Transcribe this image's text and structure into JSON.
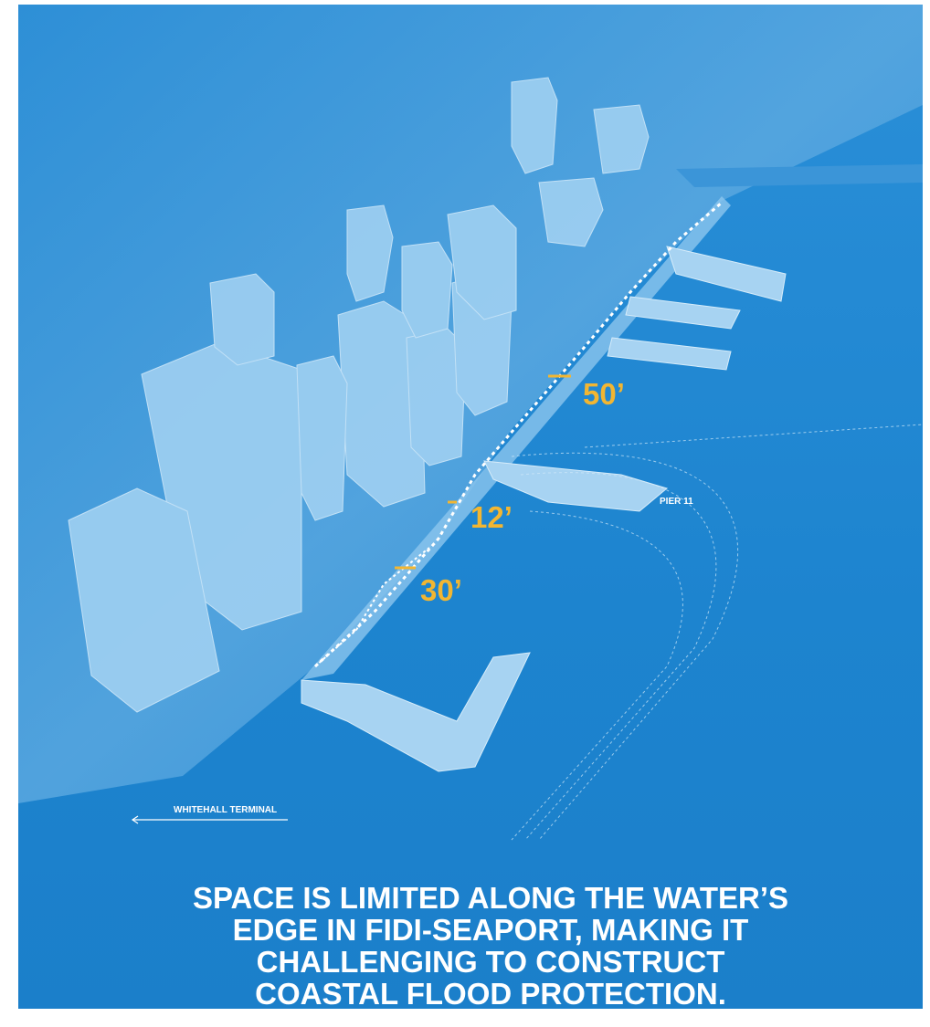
{
  "dimension_labels": [
    "50’",
    "12’",
    "30’"
  ],
  "place_labels": {
    "pier": "PIER 11",
    "terminal": "WHITEHALL TERMINAL"
  },
  "headline": {
    "lines": [
      "SPACE IS LIMITED ALONG THE WATER’S",
      "EDGE IN FIDI-SEAPORT, MAKING IT",
      "CHALLENGING TO CONSTRUCT",
      "COASTAL FLOOD PROTECTION."
    ]
  }
}
